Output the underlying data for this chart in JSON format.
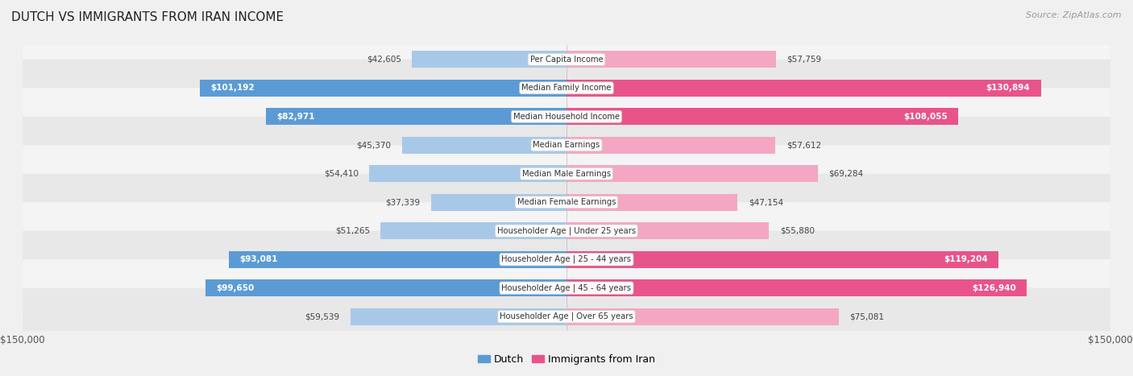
{
  "title": "DUTCH VS IMMIGRANTS FROM IRAN INCOME",
  "source": "Source: ZipAtlas.com",
  "categories": [
    "Per Capita Income",
    "Median Family Income",
    "Median Household Income",
    "Median Earnings",
    "Median Male Earnings",
    "Median Female Earnings",
    "Householder Age | Under 25 years",
    "Householder Age | 25 - 44 years",
    "Householder Age | 45 - 64 years",
    "Householder Age | Over 65 years"
  ],
  "dutch_values": [
    42605,
    101192,
    82971,
    45370,
    54410,
    37339,
    51265,
    93081,
    99650,
    59539
  ],
  "iran_values": [
    57759,
    130894,
    108055,
    57612,
    69284,
    47154,
    55880,
    119204,
    126940,
    75081
  ],
  "dutch_color_strong": "#5b9bd5",
  "dutch_color_light": "#a8c8e8",
  "iran_color_strong": "#e8538a",
  "iran_color_light": "#f4a7c3",
  "x_max": 150000,
  "bg_color": "#f0f0f0",
  "row_bg_even": "#f4f4f4",
  "row_bg_odd": "#e8e8e8",
  "dutch_threshold": 80000,
  "iran_threshold": 100000
}
